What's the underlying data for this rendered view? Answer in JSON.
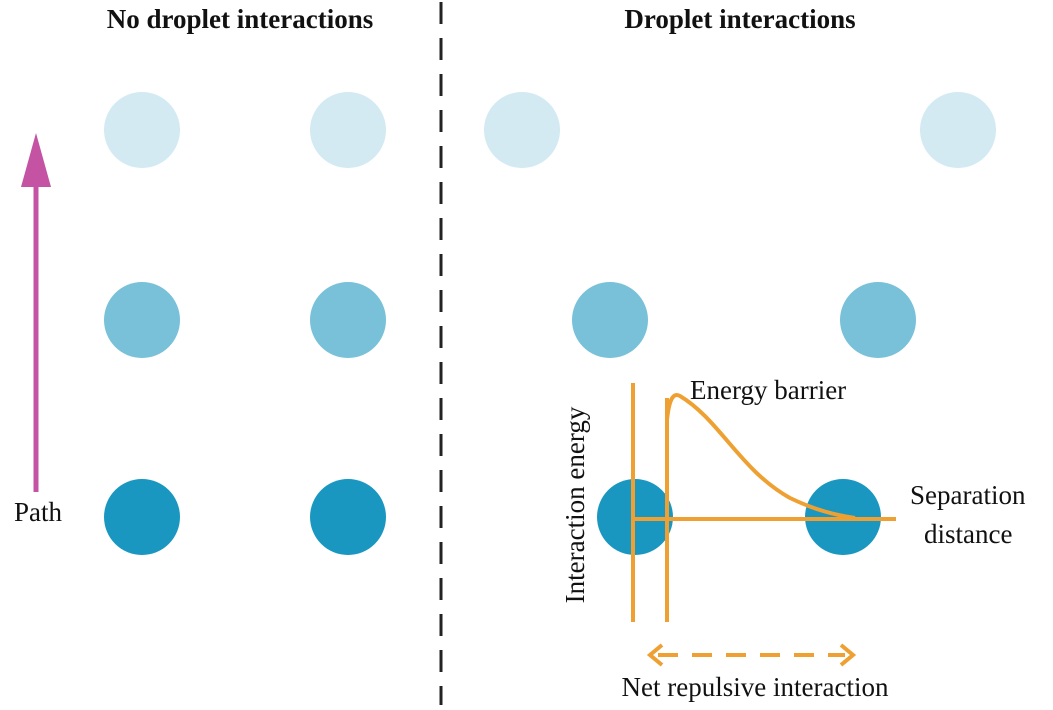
{
  "panels": [
    {
      "title": "No droplet interactions"
    },
    {
      "title": "Droplet interactions"
    }
  ],
  "path_label": "Path",
  "plot": {
    "y_label": "Interaction energy",
    "peak_label": "Energy barrier",
    "x_label": [
      "Separation",
      "distance"
    ],
    "range_label": "Net repulsive interaction"
  }
}
